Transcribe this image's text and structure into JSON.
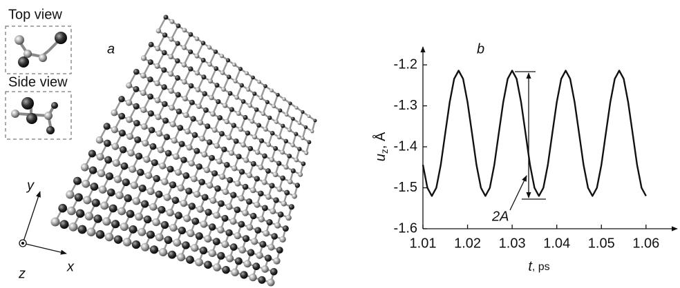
{
  "panel_a": {
    "label": "a",
    "insets": [
      "Top view",
      "Side view"
    ],
    "axes": [
      "x",
      "y",
      "z"
    ]
  },
  "chart_data": {
    "type": "line",
    "panel_label": "b",
    "annotation": "2A",
    "x_label": {
      "var": "t",
      "unit": ", ps"
    },
    "y_label": {
      "var": "u",
      "sub": "z",
      "unit": ", Å"
    },
    "color": "#111111",
    "x": [
      1.01,
      1.011,
      1.012,
      1.013,
      1.014,
      1.015,
      1.016,
      1.017,
      1.018,
      1.019,
      1.02,
      1.021,
      1.022,
      1.023,
      1.024,
      1.025,
      1.026,
      1.027,
      1.028,
      1.029,
      1.03,
      1.031,
      1.032,
      1.033,
      1.034,
      1.035,
      1.036,
      1.037,
      1.038,
      1.039,
      1.04,
      1.041,
      1.042,
      1.043,
      1.044,
      1.045,
      1.046,
      1.047,
      1.048,
      1.049,
      1.05,
      1.051,
      1.052,
      1.053,
      1.054,
      1.055,
      1.056,
      1.057,
      1.058,
      1.059,
      1.06
    ],
    "values": [
      -1.444,
      -1.5,
      -1.52,
      -1.5,
      -1.444,
      -1.367,
      -1.291,
      -1.234,
      -1.214,
      -1.234,
      -1.291,
      -1.367,
      -1.444,
      -1.5,
      -1.52,
      -1.5,
      -1.444,
      -1.367,
      -1.291,
      -1.234,
      -1.214,
      -1.234,
      -1.291,
      -1.367,
      -1.444,
      -1.5,
      -1.52,
      -1.5,
      -1.444,
      -1.367,
      -1.291,
      -1.234,
      -1.214,
      -1.234,
      -1.291,
      -1.367,
      -1.444,
      -1.5,
      -1.52,
      -1.5,
      -1.444,
      -1.367,
      -1.291,
      -1.234,
      -1.214,
      -1.234,
      -1.291,
      -1.367,
      -1.444,
      -1.5,
      -1.52
    ],
    "xlim": [
      1.01,
      1.067
    ],
    "xticks": [
      1.01,
      1.02,
      1.03,
      1.04,
      1.05,
      1.06
    ],
    "ylim": [
      -1.6,
      -1.156
    ],
    "yticks": [
      -1.2,
      -1.3,
      -1.4,
      -1.5,
      -1.6
    ]
  }
}
